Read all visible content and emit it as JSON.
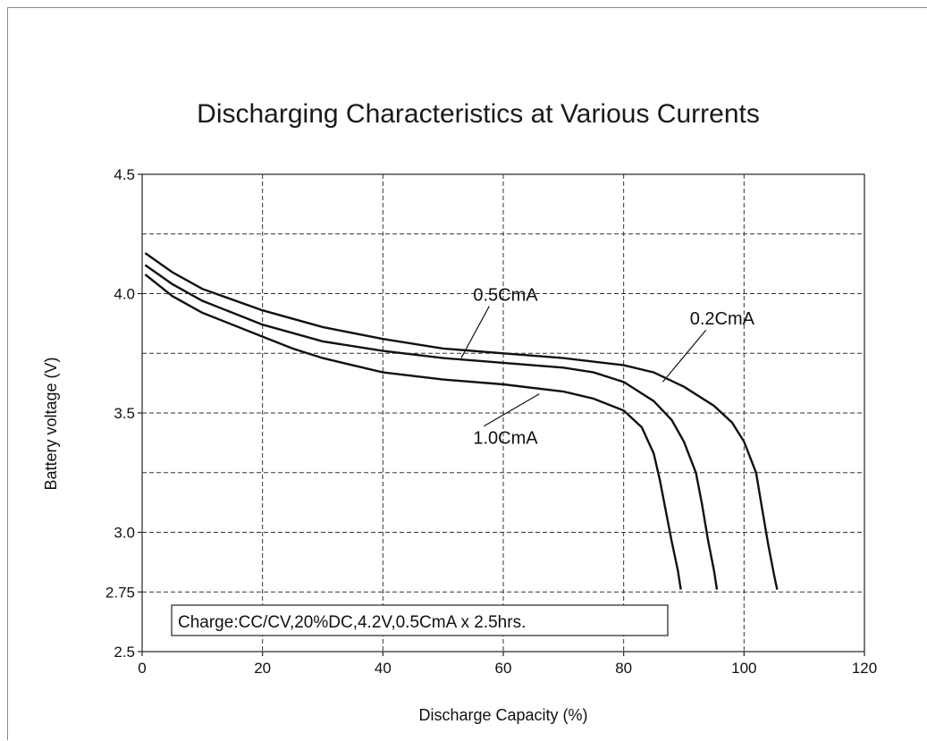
{
  "chart_data": {
    "type": "line",
    "title": "Discharging Characteristics at Various Currents",
    "xlabel": "Discharge Capacity (%)",
    "ylabel": "Battery voltage (V)",
    "xlim": [
      0,
      120
    ],
    "ylim": [
      2.5,
      4.5
    ],
    "x_ticks": [
      0,
      20,
      40,
      60,
      80,
      100,
      120
    ],
    "x_tick_labels": [
      "0",
      "20",
      "40",
      "60",
      "80",
      "100",
      "120"
    ],
    "y_ticks": [
      2.5,
      2.75,
      3.0,
      3.5,
      4.0,
      4.5
    ],
    "y_tick_labels": [
      "2.5",
      "2.75",
      "3.0",
      "3.5",
      "4.0",
      "4.5"
    ],
    "y_grid": [
      2.75,
      3.0,
      3.25,
      3.5,
      3.75,
      4.0,
      4.25
    ],
    "grid": true,
    "annotation": "Charge:CC/CV,20%DC,4.2V,0.5CmA x 2.5hrs.",
    "series": [
      {
        "name": "0.2CmA",
        "points": [
          [
            0.5,
            4.17
          ],
          [
            5,
            4.09
          ],
          [
            10,
            4.02
          ],
          [
            20,
            3.93
          ],
          [
            30,
            3.86
          ],
          [
            40,
            3.81
          ],
          [
            50,
            3.77
          ],
          [
            60,
            3.75
          ],
          [
            70,
            3.73
          ],
          [
            80,
            3.7
          ],
          [
            85,
            3.67
          ],
          [
            90,
            3.61
          ],
          [
            95,
            3.53
          ],
          [
            98,
            3.46
          ],
          [
            100,
            3.38
          ],
          [
            102,
            3.25
          ],
          [
            103,
            3.1
          ],
          [
            104,
            2.95
          ],
          [
            105,
            2.82
          ],
          [
            105.5,
            2.76
          ]
        ],
        "label_at": [
          91,
          3.87
        ],
        "leader_to": [
          86.5,
          3.63
        ]
      },
      {
        "name": "0.5CmA",
        "points": [
          [
            0.5,
            4.12
          ],
          [
            5,
            4.04
          ],
          [
            10,
            3.97
          ],
          [
            20,
            3.87
          ],
          [
            30,
            3.8
          ],
          [
            40,
            3.76
          ],
          [
            50,
            3.73
          ],
          [
            60,
            3.71
          ],
          [
            70,
            3.69
          ],
          [
            75,
            3.67
          ],
          [
            80,
            3.63
          ],
          [
            85,
            3.55
          ],
          [
            88,
            3.47
          ],
          [
            90,
            3.38
          ],
          [
            92,
            3.25
          ],
          [
            93,
            3.12
          ],
          [
            94,
            2.97
          ],
          [
            95,
            2.84
          ],
          [
            95.5,
            2.76
          ]
        ],
        "label_at": [
          55,
          3.97
        ],
        "leader_to": [
          53,
          3.73
        ]
      },
      {
        "name": "1.0CmA",
        "points": [
          [
            0.5,
            4.08
          ],
          [
            5,
            3.99
          ],
          [
            10,
            3.92
          ],
          [
            20,
            3.82
          ],
          [
            25,
            3.77
          ],
          [
            30,
            3.73
          ],
          [
            40,
            3.67
          ],
          [
            50,
            3.64
          ],
          [
            60,
            3.62
          ],
          [
            70,
            3.59
          ],
          [
            75,
            3.56
          ],
          [
            80,
            3.51
          ],
          [
            83,
            3.44
          ],
          [
            85,
            3.33
          ],
          [
            86,
            3.22
          ],
          [
            87,
            3.09
          ],
          [
            88,
            2.96
          ],
          [
            89,
            2.84
          ],
          [
            89.5,
            2.76
          ]
        ],
        "label_at": [
          55,
          3.37
        ],
        "leader_to": [
          66,
          3.58
        ]
      }
    ]
  }
}
